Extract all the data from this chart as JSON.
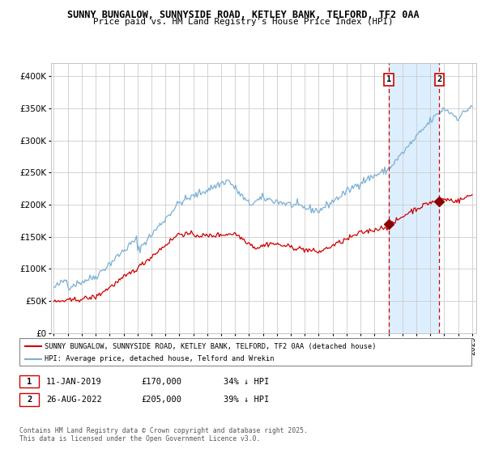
{
  "title_line1": "SUNNY BUNGALOW, SUNNYSIDE ROAD, KETLEY BANK, TELFORD, TF2 0AA",
  "title_line2": "Price paid vs. HM Land Registry's House Price Index (HPI)",
  "ytick_values": [
    0,
    50000,
    100000,
    150000,
    200000,
    250000,
    300000,
    350000,
    400000
  ],
  "ytick_labels": [
    "£0",
    "£50K",
    "£100K",
    "£150K",
    "£200K",
    "£250K",
    "£300K",
    "£350K",
    "£400K"
  ],
  "hpi_color": "#7bafd4",
  "price_color": "#cc0000",
  "marker_color": "#8b0000",
  "shade_color": "#ddeeff",
  "vline_color": "#cc0000",
  "grid_color": "#cccccc",
  "bg_color": "#ffffff",
  "legend_label_red": "SUNNY BUNGALOW, SUNNYSIDE ROAD, KETLEY BANK, TELFORD, TF2 0AA (detached house)",
  "legend_label_blue": "HPI: Average price, detached house, Telford and Wrekin",
  "sale1_date": "11-JAN-2019",
  "sale1_price": "£170,000",
  "sale1_pct": "34% ↓ HPI",
  "sale2_date": "26-AUG-2022",
  "sale2_price": "£205,000",
  "sale2_pct": "39% ↓ HPI",
  "copyright_text": "Contains HM Land Registry data © Crown copyright and database right 2025.\nThis data is licensed under the Open Government Licence v3.0.",
  "x_start_year": 1995,
  "x_end_year": 2025,
  "sale1_year": 2019.03,
  "sale2_year": 2022.65,
  "sale1_price_val": 170000,
  "sale2_price_val": 205000
}
